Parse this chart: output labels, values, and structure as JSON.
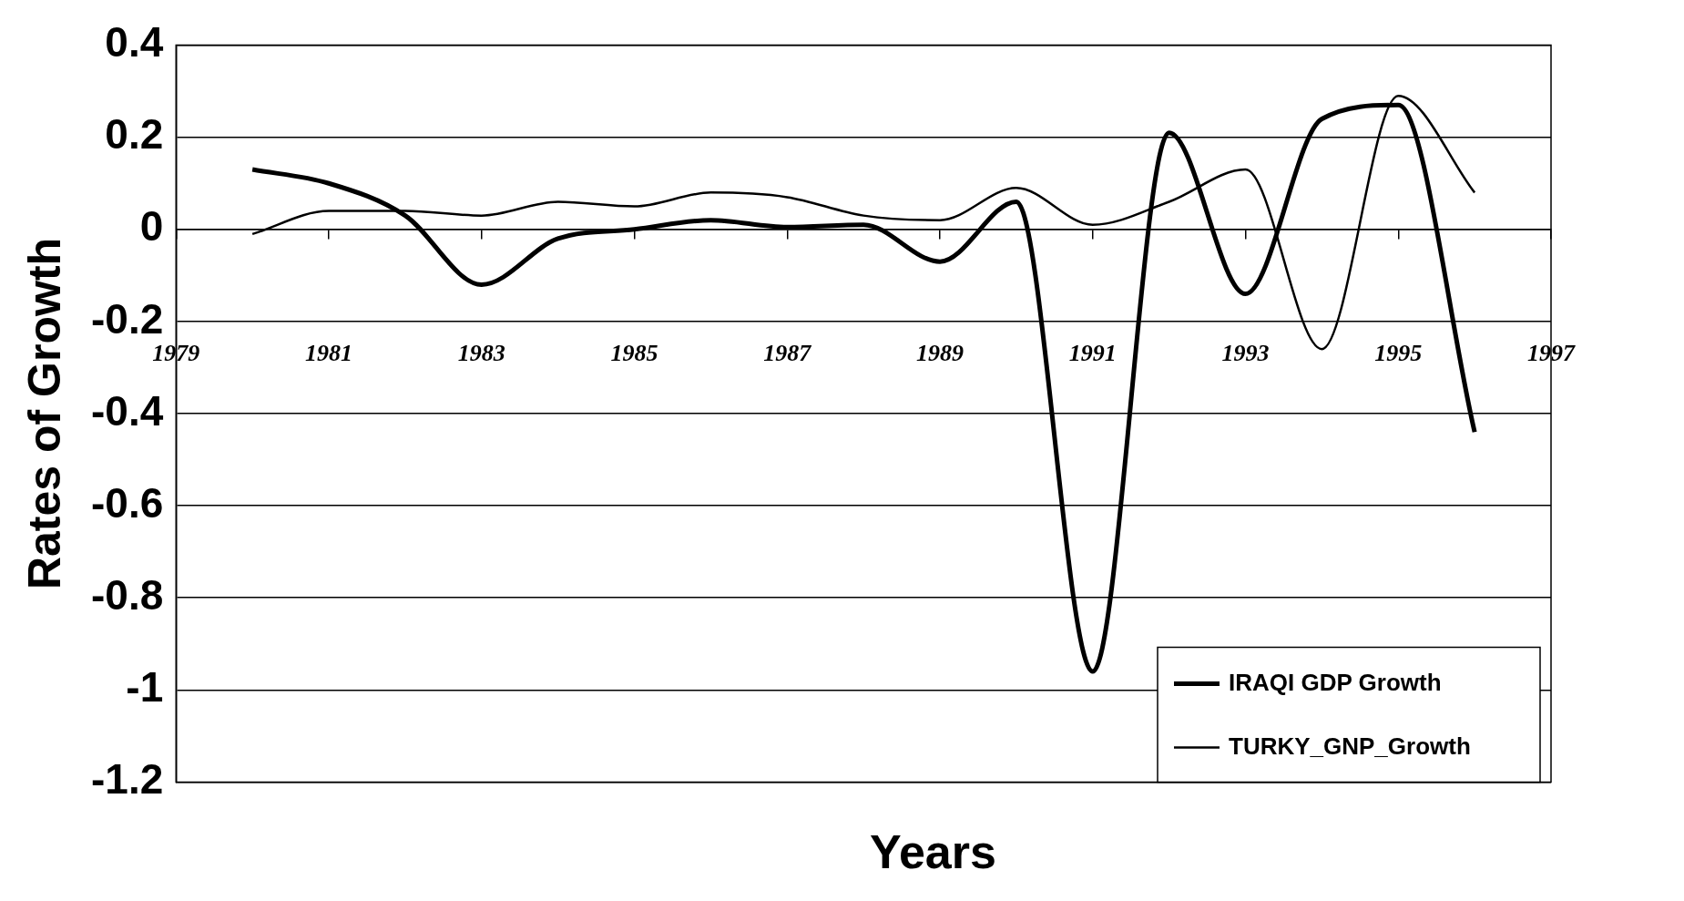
{
  "chart_data": {
    "type": "line",
    "xlabel": "Years",
    "ylabel": "Rates of Growth",
    "x": [
      1980,
      1981,
      1982,
      1983,
      1984,
      1985,
      1986,
      1987,
      1988,
      1989,
      1990,
      1991,
      1992,
      1993,
      1994,
      1995,
      1996
    ],
    "series": [
      {
        "name": "IRAQI GDP Growth",
        "color": "#000000",
        "values": [
          0.13,
          0.1,
          0.03,
          -0.12,
          -0.02,
          0.0,
          0.02,
          0.005,
          0.01,
          -0.07,
          0.06,
          -0.96,
          0.21,
          -0.14,
          0.24,
          0.27,
          -0.44
        ]
      },
      {
        "name": "TURKY_GNP_Growth",
        "color": "#000000",
        "values": [
          -0.01,
          0.04,
          0.04,
          0.03,
          0.06,
          0.05,
          0.08,
          0.07,
          0.03,
          0.02,
          0.09,
          0.01,
          0.06,
          0.13,
          -0.26,
          0.29,
          0.08
        ]
      }
    ],
    "xlim": [
      1979,
      1997
    ],
    "xticks": [
      1979,
      1981,
      1983,
      1985,
      1987,
      1989,
      1991,
      1993,
      1995,
      1997
    ],
    "ylim": [
      -1.2,
      0.4
    ],
    "yticks": [
      -1.2,
      -1,
      -0.8,
      -0.6,
      -0.4,
      -0.2,
      0,
      0.2,
      0.4
    ],
    "grid": "y",
    "legend": "bottom right",
    "marker": "none",
    "line_style": "solid"
  }
}
